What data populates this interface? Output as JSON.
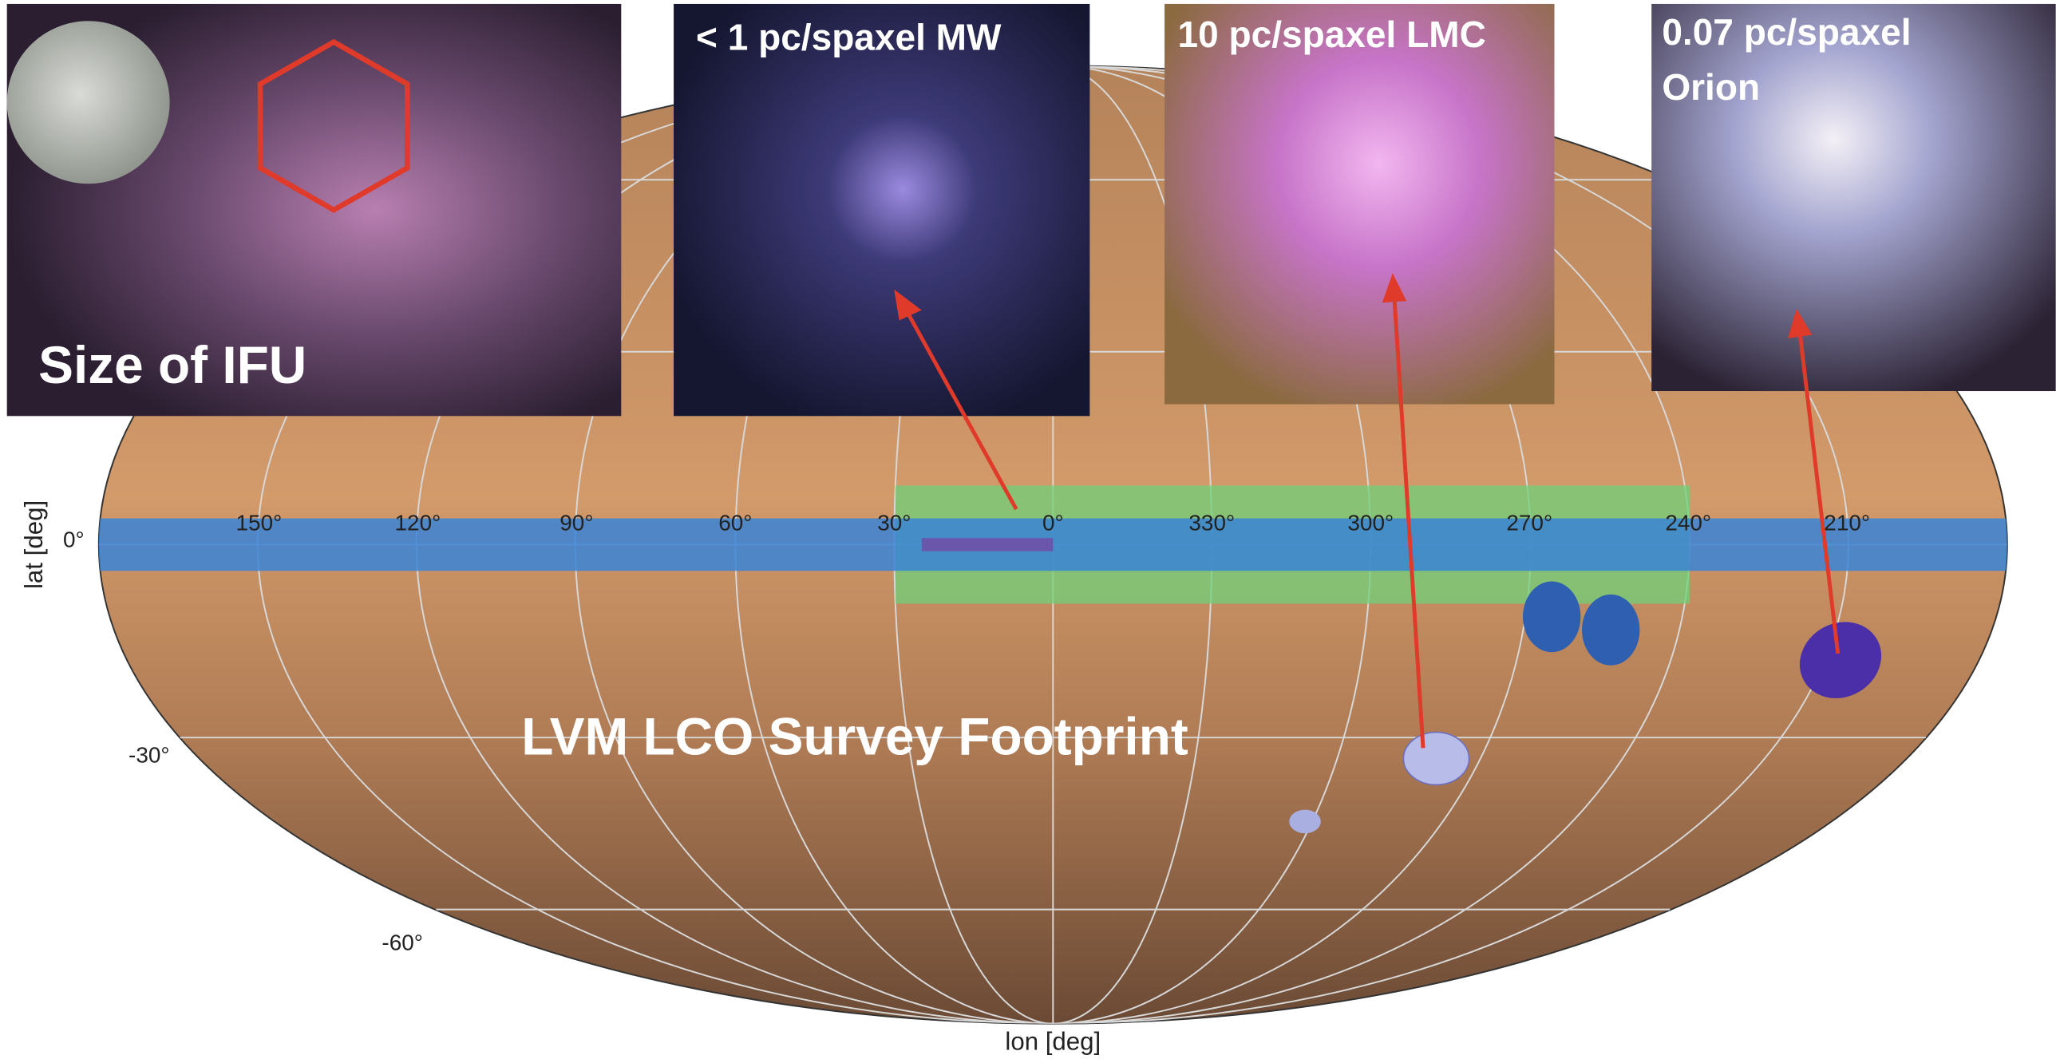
{
  "title": "LVM LCO Survey Footprint",
  "insets": {
    "ifu": "Size of IFU",
    "mw": "< 1 pc/spaxel MW",
    "lmc": "10 pc/spaxel LMC",
    "orion": [
      "0.07 pc/spaxel",
      "Orion"
    ]
  },
  "axes": {
    "x_label": "lon [deg]",
    "y_label": "lat [deg]",
    "lon_ticks": [
      "150°",
      "120°",
      "90°",
      "60°",
      "30°",
      "0°",
      "330°",
      "300°",
      "270°",
      "240°",
      "210°"
    ],
    "lat_ticks": [
      "0°",
      "-30°",
      "-60°"
    ]
  }
}
